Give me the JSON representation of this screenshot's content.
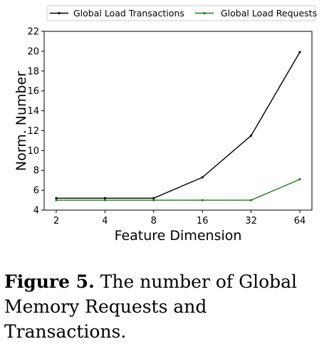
{
  "chart_data": {
    "type": "line",
    "categories": [
      "2",
      "4",
      "8",
      "16",
      "32",
      "64"
    ],
    "xlabel": "Feature Dimension",
    "ylabel": "Norm. Number",
    "ylim": [
      4,
      22
    ],
    "yticks": [
      4,
      6,
      8,
      10,
      12,
      14,
      16,
      18,
      20,
      22
    ],
    "grid": false,
    "legend_position": "top",
    "series": [
      {
        "name": "Global Load Transactions",
        "color": "#000000",
        "values": [
          5.2,
          5.2,
          5.2,
          7.3,
          11.5,
          19.9
        ]
      },
      {
        "name": "Global Load Requests",
        "color": "#1a7f1a",
        "values": [
          5.0,
          5.0,
          5.0,
          5.0,
          5.0,
          7.1
        ]
      }
    ]
  },
  "caption": {
    "label": "Figure 5.",
    "text": "The number of Global Memory Requests and Transactions."
  }
}
